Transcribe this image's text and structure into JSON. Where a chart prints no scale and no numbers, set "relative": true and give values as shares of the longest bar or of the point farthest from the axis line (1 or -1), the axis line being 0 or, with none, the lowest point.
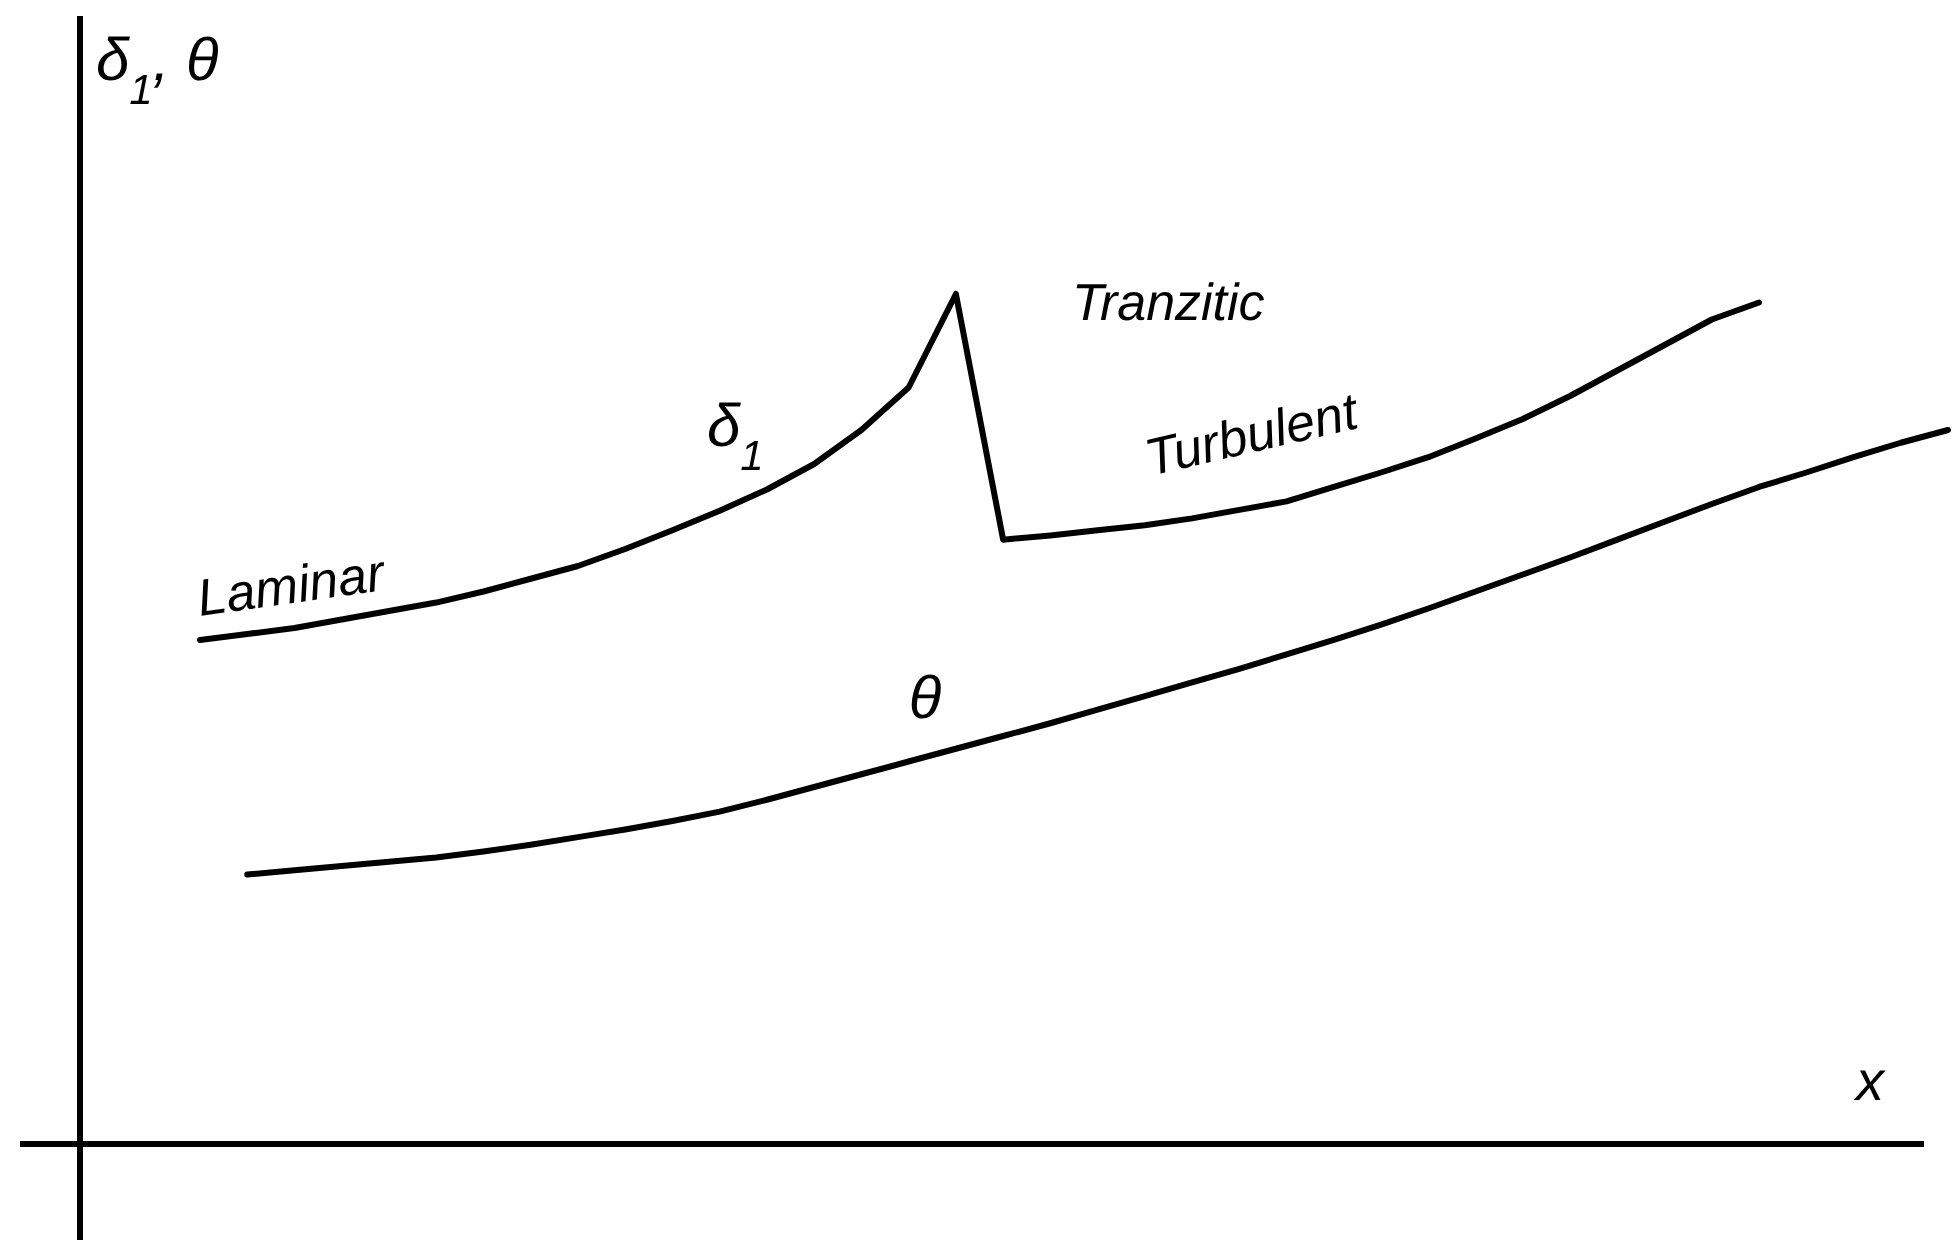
{
  "chart_data": {
    "type": "line",
    "relative": true,
    "xlabel": "x",
    "ylabel": "δ$_{1}$, θ",
    "marker": "none",
    "line_style": "solid",
    "categories": [
      null,
      null,
      null,
      null,
      null,
      null,
      null,
      null,
      null,
      null,
      null,
      null,
      null,
      null,
      null,
      null,
      null,
      null,
      null,
      null,
      null,
      null,
      null,
      null,
      null,
      null,
      null,
      null,
      null,
      null,
      null,
      null,
      null,
      null,
      null,
      null,
      null,
      null
    ],
    "series": [
      {
        "name": "δ$_{1}$",
        "color": "#000000",
        "values": [
          0.593,
          0.6,
          0.607,
          0.617,
          0.627,
          0.637,
          0.65,
          0.665,
          0.68,
          0.7,
          0.722,
          0.745,
          0.77,
          0.8,
          0.84,
          0.89,
          1.0,
          0.711,
          0.716,
          0.722,
          0.728,
          0.736,
          0.746,
          0.756,
          0.773,
          0.79,
          0.808,
          0.83,
          0.853,
          0.88,
          0.91,
          0.94,
          0.97,
          0.99,
          null,
          null,
          null,
          null
        ]
      },
      {
        "name": "θ",
        "color": "#000000",
        "values": [
          null,
          0.317,
          0.322,
          0.327,
          0.332,
          0.337,
          0.344,
          0.352,
          0.361,
          0.37,
          0.38,
          0.391,
          0.405,
          0.42,
          0.435,
          0.45,
          0.465,
          0.48,
          0.495,
          0.511,
          0.527,
          0.543,
          0.559,
          0.576,
          0.593,
          0.611,
          0.63,
          0.65,
          0.67,
          0.69,
          0.711,
          0.732,
          0.753,
          0.773,
          0.79,
          0.808,
          0.825,
          0.84
        ]
      }
    ],
    "annotations": [
      "Laminar",
      "Tranzitic",
      "Turbulent"
    ]
  }
}
